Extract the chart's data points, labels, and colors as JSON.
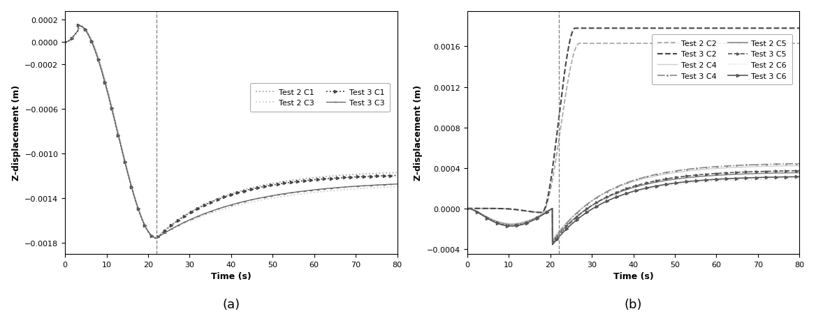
{
  "fig_width": 11.68,
  "fig_height": 4.64,
  "subplot_a": {
    "xlabel": "Time (s)",
    "ylabel": "Z-displacement (m)",
    "xlim": [
      0,
      80
    ],
    "ylim": [
      -0.0019,
      0.00028
    ],
    "yticks": [
      0.0002,
      0.0,
      -0.0002,
      -0.0006,
      -0.001,
      -0.0014,
      -0.0018
    ],
    "xticks": [
      0,
      10,
      20,
      30,
      40,
      50,
      60,
      70,
      80
    ],
    "dashed_vline": 22,
    "label_a": "(a)"
  },
  "subplot_b": {
    "xlabel": "Time (s)",
    "ylabel": "Z-displacement (m)",
    "xlim": [
      0,
      80
    ],
    "ylim": [
      -0.00045,
      0.00195
    ],
    "yticks": [
      -0.0004,
      0.0,
      0.0004,
      0.0008,
      0.0012,
      0.0016
    ],
    "xticks": [
      0,
      10,
      20,
      30,
      40,
      50,
      60,
      70,
      80
    ],
    "dashed_vline": 22,
    "label_b": "(b)"
  }
}
